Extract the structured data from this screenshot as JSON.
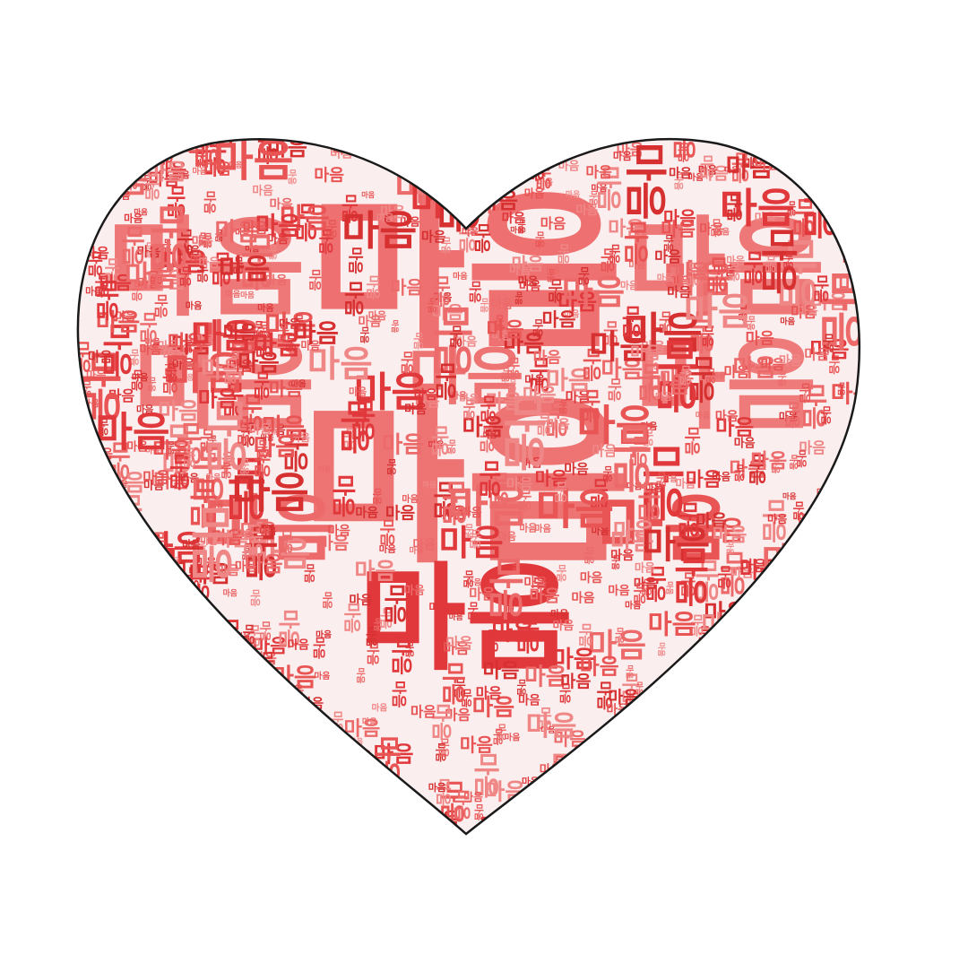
{
  "word_cloud": {
    "shape": "heart",
    "word": "마음",
    "colors": {
      "background": "#ffffff",
      "outline": "#1a1a1a",
      "heart_fill": "#fbeeee",
      "palette": [
        "#e0383b",
        "#ec6a6a",
        "#f08787",
        "#d63031",
        "#e95555"
      ]
    }
  }
}
